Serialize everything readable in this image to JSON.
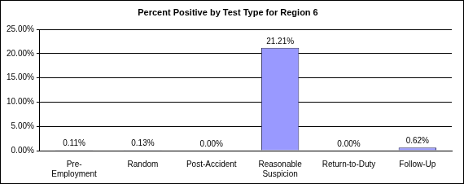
{
  "chart_data": {
    "type": "bar",
    "title": "Percent Positive by Test Type for Region 6",
    "categories": [
      "Pre-Employment",
      "Random",
      "Post-Accident",
      "Reasonable Suspicion",
      "Return-to-Duty",
      "Follow-Up"
    ],
    "values": [
      0.11,
      0.13,
      0.0,
      21.21,
      0.0,
      0.62
    ],
    "value_labels": [
      "0.11%",
      "0.13%",
      "0.00%",
      "21.21%",
      "0.00%",
      "0.62%"
    ],
    "color": "#9999ff",
    "ylim": [
      0,
      25
    ],
    "yticks": [
      {
        "value": 0,
        "label": "0.00%"
      },
      {
        "value": 5,
        "label": "5.00%"
      },
      {
        "value": 10,
        "label": "10.00%"
      },
      {
        "value": 15,
        "label": "15.00%"
      },
      {
        "value": 20,
        "label": "20.00%"
      },
      {
        "value": 25,
        "label": "25.00%"
      }
    ],
    "grid": true,
    "data_labels": true
  }
}
